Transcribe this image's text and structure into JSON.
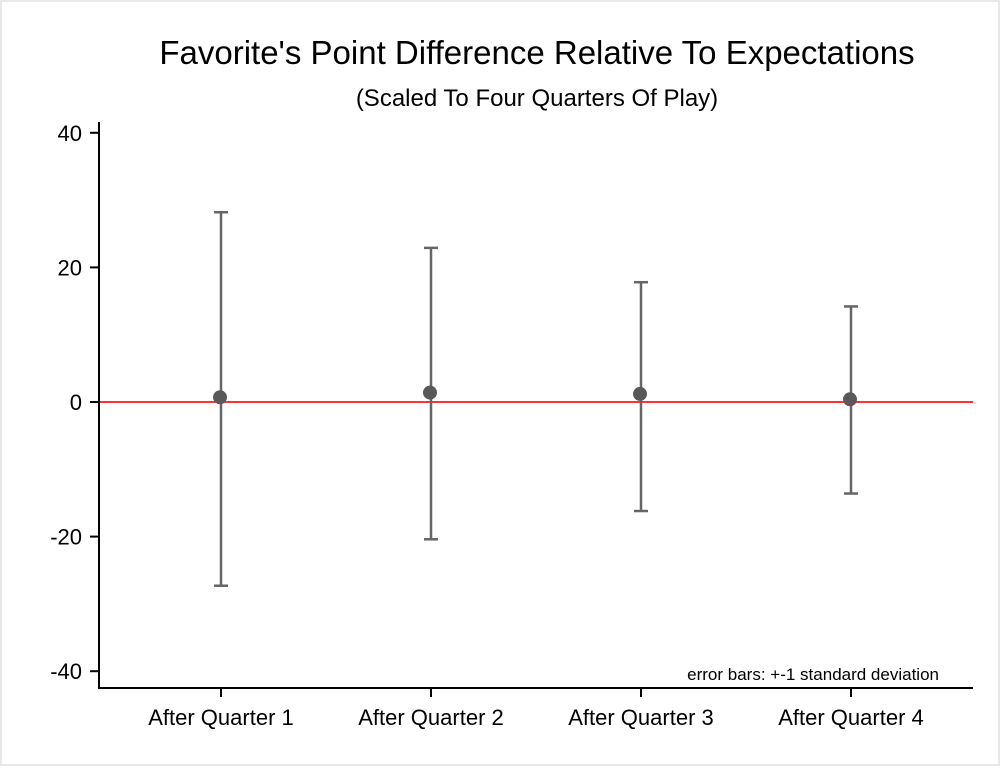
{
  "chart_data": {
    "type": "scatter",
    "title": "Favorite's Point Difference Relative To Expectations",
    "subtitle": "(Scaled To Four Quarters Of Play)",
    "xlabel": "",
    "ylabel": "",
    "categories": [
      "After Quarter 1",
      "After Quarter 2",
      "After Quarter 3",
      "After Quarter 4"
    ],
    "series": [
      {
        "name": "mean",
        "values": [
          0.7,
          1.4,
          1.2,
          0.4
        ],
        "error_upper": [
          28.2,
          22.9,
          17.8,
          14.2
        ],
        "error_lower": [
          -27.3,
          -20.4,
          -16.2,
          -13.6
        ]
      }
    ],
    "yticks": [
      40,
      20,
      0,
      -20,
      -40
    ],
    "ytick_labels": [
      "40",
      "20",
      "0",
      "-20",
      "-40"
    ],
    "ylim": [
      -42.5,
      40
    ],
    "reference_line": 0,
    "annotation": "error bars: +-1 standard deviation",
    "grid": false,
    "colors": {
      "marker": "#595959",
      "errorbar": "#666666",
      "reference": "#ff3333",
      "axis": "#000000"
    }
  }
}
